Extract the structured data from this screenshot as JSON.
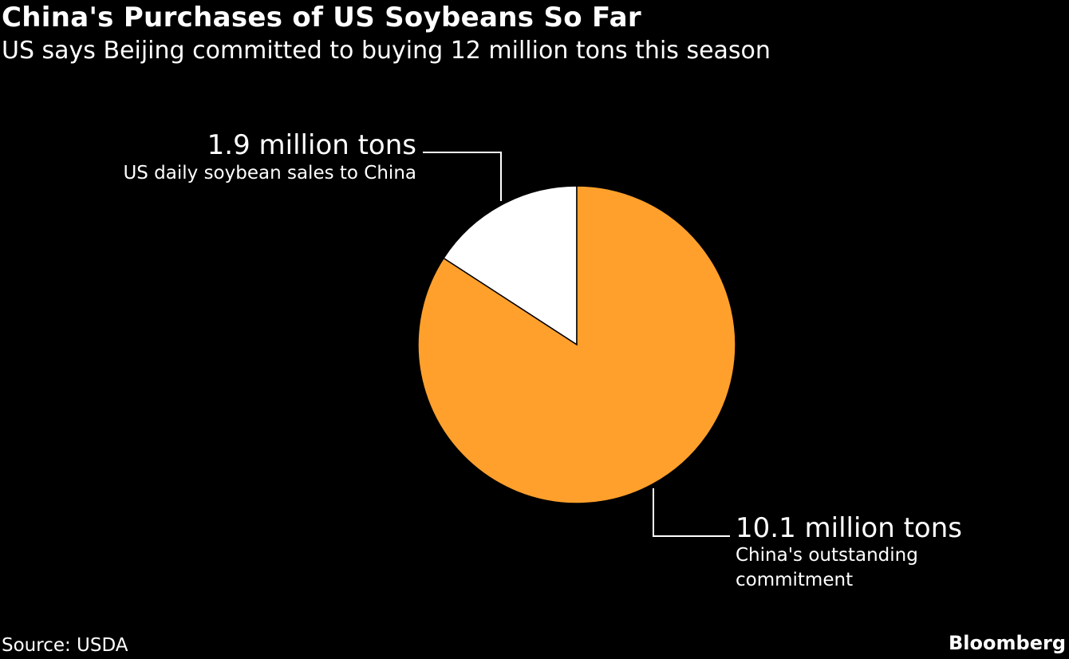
{
  "header": {
    "title": "China's Purchases of US Soybeans So Far",
    "subtitle": "US says Beijing committed to buying 12 million tons this season"
  },
  "chart_data": {
    "type": "pie",
    "title": "China's Purchases of US Soybeans So Far",
    "subtitle": "US says Beijing committed to buying 12 million tons this season",
    "slices": [
      {
        "value": 1.9,
        "value_label": "1.9 million tons",
        "description": "US daily soybean sales to China",
        "color": "#ffffff"
      },
      {
        "value": 10.1,
        "value_label": "10.1 million tons",
        "description_lines": [
          "China's outstanding",
          "commitment"
        ],
        "color": "#ffa02c"
      }
    ],
    "total": 12,
    "start_angle": "12 o'clock",
    "direction": "counter-clockwise for first slice"
  },
  "footer": {
    "source": "Source: USDA",
    "brand": "Bloomberg"
  },
  "colors": {
    "background": "#000000",
    "text": "#ffffff",
    "slice_sales": "#ffffff",
    "slice_commitment": "#ffa02c"
  }
}
